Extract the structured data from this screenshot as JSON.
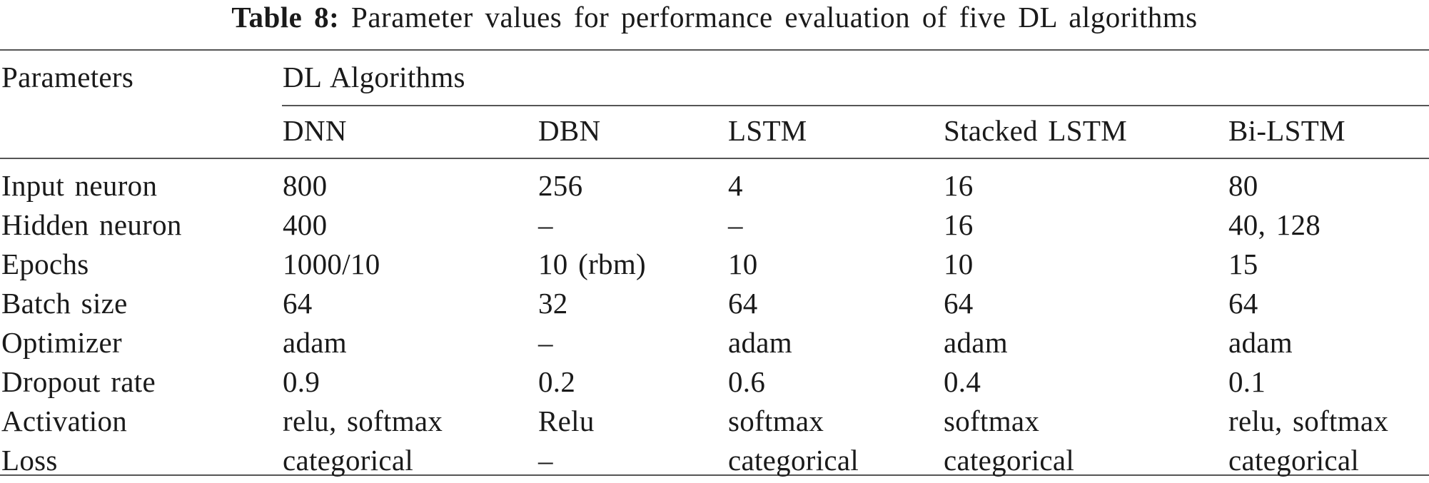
{
  "caption": {
    "label": "Table 8:",
    "text": "Parameter values for performance evaluation of five DL algorithms"
  },
  "table": {
    "row_header_label": "Parameters",
    "group_label": "DL Algorithms",
    "columns": [
      "DNN",
      "DBN",
      "LSTM",
      "Stacked LSTM",
      "Bi-LSTM"
    ],
    "rows": [
      {
        "param": "Input neuron",
        "values": [
          "800",
          "256",
          "4",
          "16",
          "80"
        ]
      },
      {
        "param": "Hidden neuron",
        "values": [
          "400",
          "–",
          "–",
          "16",
          "40, 128"
        ]
      },
      {
        "param": "Epochs",
        "values": [
          "1000/10",
          "10 (rbm)",
          "10",
          "10",
          "15"
        ]
      },
      {
        "param": "Batch size",
        "values": [
          "64",
          "32",
          "64",
          "64",
          "64"
        ]
      },
      {
        "param": "Optimizer",
        "values": [
          "adam",
          "–",
          "adam",
          "adam",
          "adam"
        ]
      },
      {
        "param": "Dropout rate",
        "values": [
          "0.9",
          "0.2",
          "0.6",
          "0.4",
          "0.1"
        ]
      },
      {
        "param": "Activation",
        "values": [
          "relu, softmax",
          "Relu",
          "softmax",
          "softmax",
          "relu, softmax"
        ]
      },
      {
        "param": "Loss",
        "values": [
          "categorical",
          "–",
          "categorical",
          "categorical",
          "categorical"
        ]
      }
    ]
  }
}
